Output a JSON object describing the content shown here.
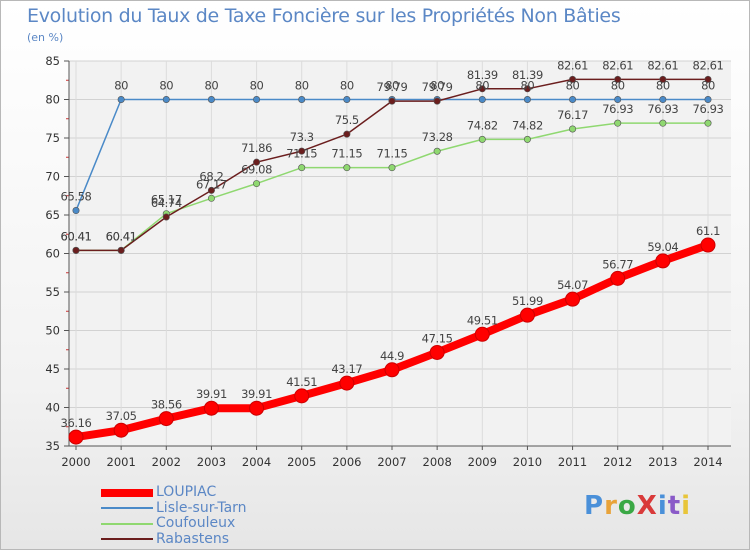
{
  "chart_data": {
    "type": "line",
    "title": "Evolution du Taux de Taxe Foncière sur les Propriétés Non Bâties",
    "ylabel": "(en %)",
    "xlabel": "",
    "categories": [
      "2000",
      "2001",
      "2002",
      "2003",
      "2004",
      "2005",
      "2006",
      "2007",
      "2008",
      "2009",
      "2010",
      "2011",
      "2012",
      "2013",
      "2014"
    ],
    "ylim": [
      35,
      85
    ],
    "yticks": [
      "35",
      "40",
      "45",
      "50",
      "55",
      "60",
      "65",
      "70",
      "75",
      "80",
      "85"
    ],
    "grid": true,
    "legend_position": "bottom-left",
    "series": [
      {
        "name": "LOUPIAC",
        "color": "#ff0000",
        "values": [
          36.16,
          37.05,
          38.56,
          39.91,
          39.91,
          41.51,
          43.17,
          44.9,
          47.15,
          49.51,
          51.99,
          54.07,
          56.77,
          59.04,
          61.1
        ],
        "labels": [
          "36.16",
          "37.05",
          "38.56",
          "39.91",
          "39.91",
          "41.51",
          "43.17",
          "44.9",
          "47.15",
          "49.51",
          "51.99",
          "54.07",
          "56.77",
          "59.04",
          "61.1"
        ]
      },
      {
        "name": "Lisle-sur-Tarn",
        "color": "#4a8ac8",
        "values": [
          65.58,
          80,
          80,
          80,
          80,
          80,
          80,
          80,
          80,
          80,
          80,
          80,
          80,
          80,
          80
        ],
        "labels": [
          "65.58",
          "80",
          "80",
          "80",
          "80",
          "80",
          "80",
          "80",
          "80",
          "80",
          "80",
          "80",
          "80",
          "80",
          "80"
        ]
      },
      {
        "name": "Coufouleux",
        "color": "#8fd870",
        "values": [
          60.41,
          60.41,
          65.17,
          67.17,
          69.08,
          71.15,
          71.15,
          71.15,
          73.28,
          74.82,
          74.82,
          76.17,
          76.93,
          76.93,
          76.93
        ],
        "labels": [
          "60.41",
          "60.41",
          "65.17",
          "67.17",
          "69.08",
          "71.15",
          "71.15",
          "71.15",
          "73.28",
          "74.82",
          "74.82",
          "76.17",
          "76.93",
          "76.93",
          "76.93"
        ]
      },
      {
        "name": "Rabastens",
        "color": "#6b1e1e",
        "values": [
          60.41,
          60.41,
          64.74,
          68.2,
          71.86,
          73.3,
          75.5,
          79.79,
          79.79,
          81.39,
          81.39,
          82.61,
          82.61,
          82.61,
          82.61
        ],
        "labels": [
          "60.41",
          "60.41",
          "64.74",
          "68.2",
          "71.86",
          "73.3",
          "75.5",
          "79.79",
          "79.79",
          "81.39",
          "81.39",
          "82.61",
          "82.61",
          "82.61",
          "82.61"
        ]
      }
    ]
  },
  "logo": {
    "text": "ProXiti",
    "letter_colors": [
      "#4a90d9",
      "#e8a33a",
      "#3aa845",
      "#d93a3a",
      "#4a90d9",
      "#8a5ac8",
      "#e8c53a"
    ]
  }
}
